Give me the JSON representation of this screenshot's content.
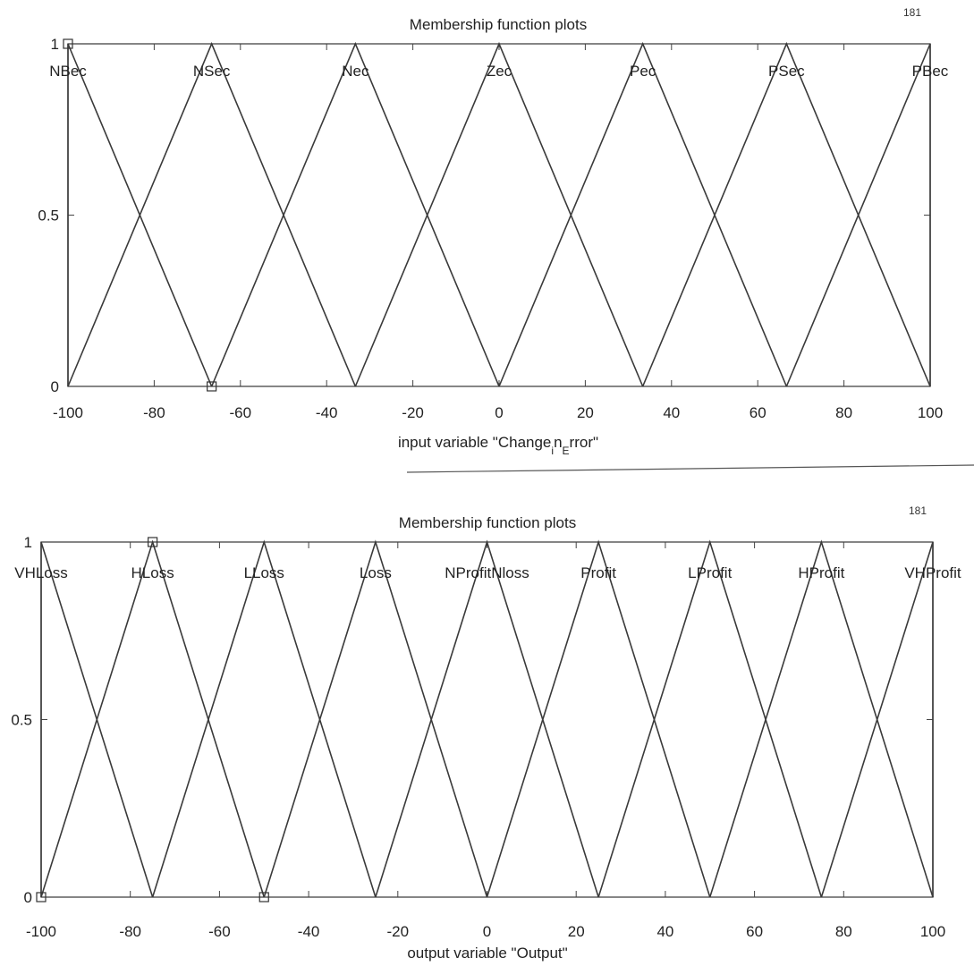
{
  "charts": [
    {
      "page_number": "181",
      "title": "Membership function plots",
      "xlabel_parts": [
        "input variable \"Change",
        "i",
        "n",
        "E",
        "rror\""
      ],
      "chart_data": {
        "type": "line",
        "title": "Membership function plots",
        "xlabel": "input variable \"Change_in_Error\"",
        "ylabel": "",
        "xlim": [
          -100,
          100
        ],
        "ylim": [
          0,
          1
        ],
        "x_ticks": [
          -100,
          -80,
          -60,
          -40,
          -20,
          0,
          20,
          40,
          60,
          80,
          100
        ],
        "y_ticks": [
          0,
          0.5,
          1
        ],
        "y_tick_labels": [
          "0",
          "0.5",
          "1"
        ],
        "grid": false,
        "series": [
          {
            "name": "NBec",
            "x": [
              -100,
              -100,
              -66.67
            ],
            "y": [
              0,
              1,
              0
            ]
          },
          {
            "name": "NSec",
            "x": [
              -100,
              -66.67,
              -33.33
            ],
            "y": [
              0,
              1,
              0
            ]
          },
          {
            "name": "Nec",
            "x": [
              -66.67,
              -33.33,
              0
            ],
            "y": [
              0,
              1,
              0
            ]
          },
          {
            "name": "Zec",
            "x": [
              -33.33,
              0,
              33.33
            ],
            "y": [
              0,
              1,
              0
            ]
          },
          {
            "name": "Pec",
            "x": [
              0,
              33.33,
              66.67
            ],
            "y": [
              0,
              1,
              0
            ]
          },
          {
            "name": "PSec",
            "x": [
              33.33,
              66.67,
              100
            ],
            "y": [
              0,
              1,
              0
            ]
          },
          {
            "name": "PBec",
            "x": [
              66.67,
              100,
              100
            ],
            "y": [
              0,
              1,
              0
            ]
          }
        ],
        "markers": [
          {
            "x": -100,
            "y": 1
          },
          {
            "x": -66.67,
            "y": 0
          }
        ]
      }
    },
    {
      "page_number": "181",
      "title": "Membership function plots",
      "xlabel_parts": [
        "output variable \"Output\""
      ],
      "chart_data": {
        "type": "line",
        "title": "Membership function plots",
        "xlabel": "output variable \"Output\"",
        "ylabel": "",
        "xlim": [
          -100,
          100
        ],
        "ylim": [
          0,
          1
        ],
        "x_ticks": [
          -100,
          -80,
          -60,
          -40,
          -20,
          0,
          20,
          40,
          60,
          80,
          100
        ],
        "y_ticks": [
          0,
          0.5,
          1
        ],
        "y_tick_labels": [
          "0",
          "0.5",
          "1"
        ],
        "grid": false,
        "series": [
          {
            "name": "VHLoss",
            "x": [
              -100,
              -100,
              -75
            ],
            "y": [
              0,
              1,
              0
            ]
          },
          {
            "name": "HLoss",
            "x": [
              -100,
              -75,
              -50
            ],
            "y": [
              0,
              1,
              0
            ]
          },
          {
            "name": "LLoss",
            "x": [
              -75,
              -50,
              -25
            ],
            "y": [
              0,
              1,
              0
            ]
          },
          {
            "name": "Loss",
            "x": [
              -50,
              -25,
              0
            ],
            "y": [
              0,
              1,
              0
            ]
          },
          {
            "name": "NProfitNloss",
            "x": [
              -25,
              0,
              25
            ],
            "y": [
              0,
              1,
              0
            ]
          },
          {
            "name": "Profit",
            "x": [
              0,
              25,
              50
            ],
            "y": [
              0,
              1,
              0
            ]
          },
          {
            "name": "LProfit",
            "x": [
              25,
              50,
              75
            ],
            "y": [
              0,
              1,
              0
            ]
          },
          {
            "name": "HProfit",
            "x": [
              50,
              75,
              100
            ],
            "y": [
              0,
              1,
              0
            ]
          },
          {
            "name": "VHProfit",
            "x": [
              75,
              100,
              100
            ],
            "y": [
              0,
              1,
              0
            ]
          }
        ],
        "markers": [
          {
            "x": -75,
            "y": 1
          },
          {
            "x": -50,
            "y": 0
          },
          {
            "x": -100,
            "y": 0
          }
        ]
      }
    }
  ]
}
